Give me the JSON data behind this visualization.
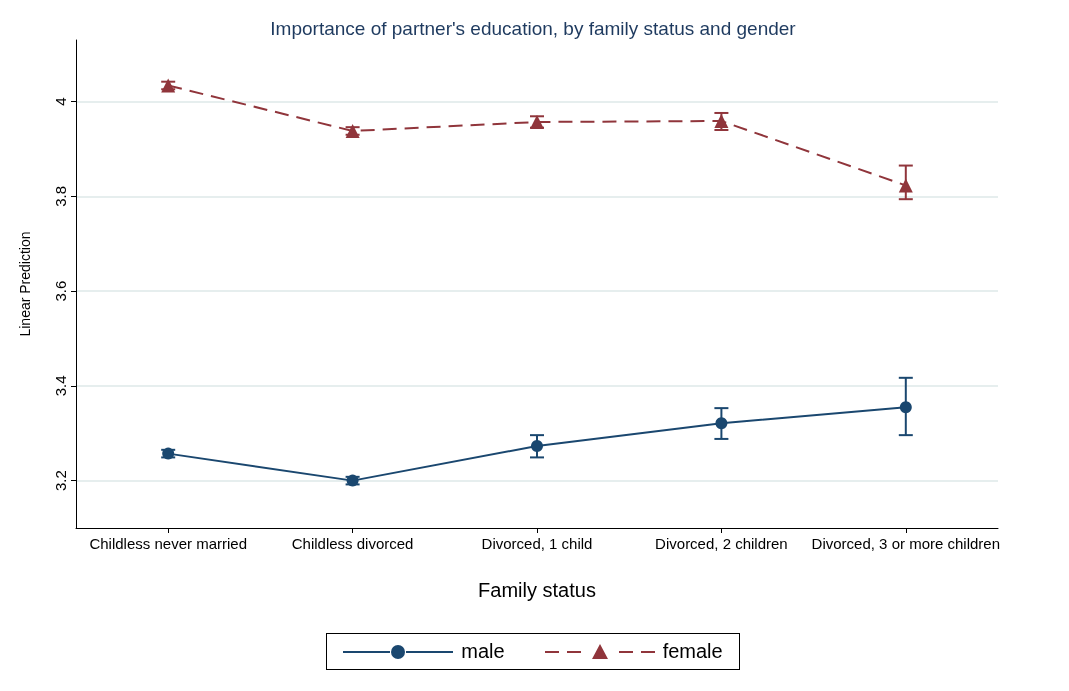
{
  "chart_data": {
    "type": "line",
    "title": "Importance of partner's education, by family status and gender",
    "xlabel": "Family status",
    "ylabel": "Linear Prediction",
    "categories": [
      "Childless never married",
      "Childless divorced",
      "Divorced, 1 child",
      "Divorced, 2 children",
      "Divorced, 3 or more children"
    ],
    "ylim": [
      3.1,
      4.13
    ],
    "yticks": [
      3.2,
      3.4,
      3.6,
      3.8,
      4
    ],
    "grid": "y",
    "legend": "bottom",
    "series": [
      {
        "name": "male",
        "color": "#1a476f",
        "marker": "circle",
        "line_style": "solid",
        "values": [
          3.257,
          3.2,
          3.273,
          3.321,
          3.355
        ],
        "errors": [
          0.008,
          0.008,
          [
            3.249,
            3.296
          ],
          [
            3.288,
            3.353
          ],
          [
            3.296,
            3.417
          ]
        ]
      },
      {
        "name": "female",
        "color": "#90353b",
        "marker": "triangle",
        "line_style": "dashed",
        "values": [
          4.034,
          3.938,
          3.957,
          3.959,
          3.823
        ],
        "errors": [
          0.008,
          0.008,
          0.012,
          [
            3.94,
            3.976
          ],
          [
            3.794,
            3.865
          ]
        ]
      }
    ]
  }
}
